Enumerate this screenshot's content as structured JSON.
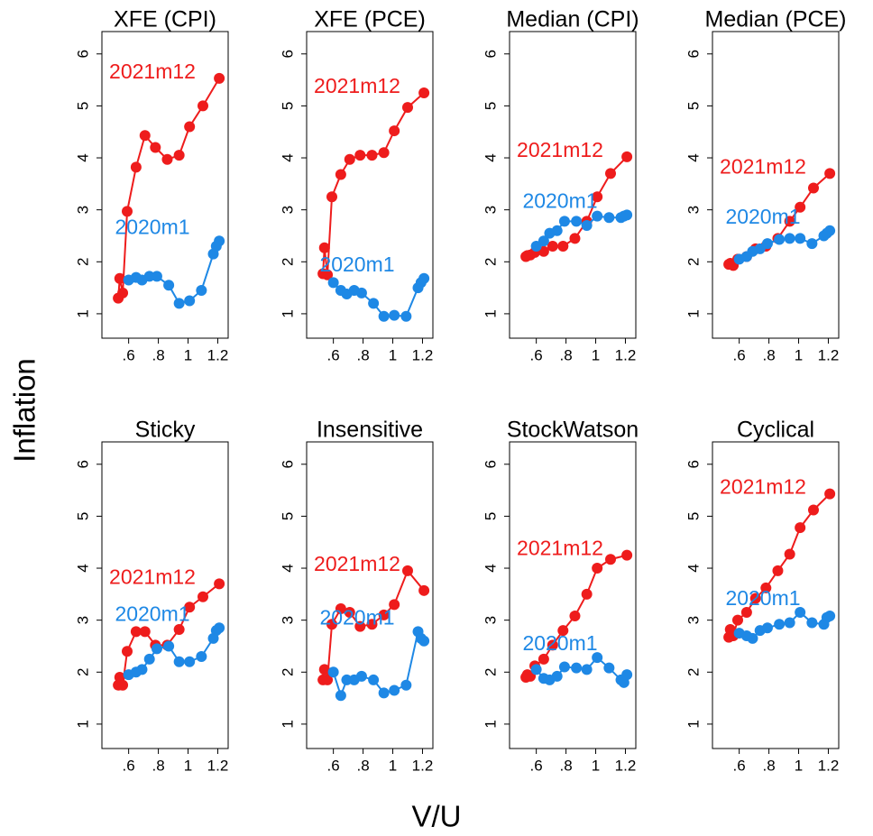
{
  "xlabel": "V/U",
  "ylabel": "Inflation",
  "chart_data": [
    {
      "type": "line",
      "title": "XFE (CPI)",
      "xlim": [
        0.42,
        1.27
      ],
      "ylim": [
        0.53,
        6.43
      ],
      "xticks": [
        {
          "value": 0.6,
          "label": ".6"
        },
        {
          "value": 0.8,
          "label": ".8"
        },
        1,
        1.2
      ],
      "yticks": [
        1,
        2,
        3,
        4,
        5,
        6
      ],
      "series": [
        {
          "name": "2021m12",
          "color": "#ee1c1c",
          "x": [
            0.53,
            0.54,
            0.56,
            0.59,
            0.65,
            0.71,
            0.78,
            0.86,
            0.94,
            1.01,
            1.1,
            1.21
          ],
          "values": [
            1.3,
            1.68,
            1.4,
            2.97,
            3.82,
            4.43,
            4.2,
            3.97,
            4.05,
            4.6,
            5.0,
            5.53
          ]
        },
        {
          "name": "2020m1",
          "color": "#1e88e5",
          "x": [
            0.6,
            0.65,
            0.69,
            0.74,
            0.79,
            0.87,
            0.94,
            1.01,
            1.09,
            1.17,
            1.19,
            1.21
          ],
          "values": [
            1.65,
            1.7,
            1.65,
            1.72,
            1.72,
            1.55,
            1.2,
            1.25,
            1.45,
            2.15,
            2.3,
            2.4
          ]
        }
      ]
    },
    {
      "type": "line",
      "title": "XFE (PCE)",
      "xlim": [
        0.42,
        1.27
      ],
      "ylim": [
        0.53,
        6.43
      ],
      "xticks": [
        {
          "value": 0.6,
          "label": ".6"
        },
        {
          "value": 0.8,
          "label": ".8"
        },
        1,
        1.2
      ],
      "yticks": [
        1,
        2,
        3,
        4,
        5,
        6
      ],
      "series": [
        {
          "name": "2021m12",
          "color": "#ee1c1c",
          "x": [
            0.53,
            0.54,
            0.56,
            0.59,
            0.65,
            0.71,
            0.78,
            0.86,
            0.94,
            1.01,
            1.1,
            1.21
          ],
          "values": [
            1.77,
            2.27,
            1.75,
            3.25,
            3.68,
            3.97,
            4.05,
            4.05,
            4.1,
            4.52,
            4.97,
            5.25
          ]
        },
        {
          "name": "2020m1",
          "color": "#1e88e5",
          "x": [
            0.6,
            0.65,
            0.69,
            0.74,
            0.79,
            0.87,
            0.94,
            1.01,
            1.09,
            1.17,
            1.19,
            1.21
          ],
          "values": [
            1.6,
            1.45,
            1.38,
            1.45,
            1.4,
            1.2,
            0.95,
            0.97,
            0.95,
            1.5,
            1.6,
            1.68
          ]
        }
      ]
    },
    {
      "type": "line",
      "title": "Median (CPI)",
      "xlim": [
        0.42,
        1.27
      ],
      "ylim": [
        0.53,
        6.43
      ],
      "xticks": [
        {
          "value": 0.6,
          "label": ".6"
        },
        {
          "value": 0.8,
          "label": ".8"
        },
        1,
        1.2
      ],
      "yticks": [
        1,
        2,
        3,
        4,
        5,
        6
      ],
      "series": [
        {
          "name": "2021m12",
          "color": "#ee1c1c",
          "x": [
            0.53,
            0.54,
            0.56,
            0.59,
            0.65,
            0.71,
            0.78,
            0.86,
            0.94,
            1.01,
            1.1,
            1.21
          ],
          "values": [
            2.1,
            2.12,
            2.13,
            2.18,
            2.2,
            2.3,
            2.3,
            2.45,
            2.78,
            3.25,
            3.7,
            4.02
          ]
        },
        {
          "name": "2020m1",
          "color": "#1e88e5",
          "x": [
            0.6,
            0.65,
            0.69,
            0.74,
            0.79,
            0.87,
            0.94,
            1.01,
            1.09,
            1.17,
            1.19,
            1.21
          ],
          "values": [
            2.3,
            2.4,
            2.55,
            2.6,
            2.78,
            2.78,
            2.7,
            2.88,
            2.85,
            2.85,
            2.88,
            2.9
          ]
        }
      ]
    },
    {
      "type": "line",
      "title": "Median (PCE)",
      "xlim": [
        0.42,
        1.27
      ],
      "ylim": [
        0.53,
        6.43
      ],
      "xticks": [
        {
          "value": 0.6,
          "label": ".6"
        },
        {
          "value": 0.8,
          "label": ".8"
        },
        1,
        1.2
      ],
      "yticks": [
        1,
        2,
        3,
        4,
        5,
        6
      ],
      "series": [
        {
          "name": "2021m12",
          "color": "#ee1c1c",
          "x": [
            0.53,
            0.54,
            0.56,
            0.59,
            0.65,
            0.71,
            0.78,
            0.86,
            0.94,
            1.01,
            1.1,
            1.21
          ],
          "values": [
            1.95,
            1.97,
            1.93,
            2.05,
            2.1,
            2.25,
            2.3,
            2.45,
            2.78,
            3.05,
            3.42,
            3.7
          ]
        },
        {
          "name": "2020m1",
          "color": "#1e88e5",
          "x": [
            0.6,
            0.65,
            0.69,
            0.74,
            0.79,
            0.87,
            0.94,
            1.01,
            1.09,
            1.17,
            1.19,
            1.21
          ],
          "values": [
            2.05,
            2.1,
            2.2,
            2.25,
            2.35,
            2.43,
            2.45,
            2.45,
            2.35,
            2.5,
            2.55,
            2.6
          ]
        }
      ]
    },
    {
      "type": "line",
      "title": "Sticky",
      "xlim": [
        0.42,
        1.27
      ],
      "ylim": [
        0.53,
        6.43
      ],
      "xticks": [
        {
          "value": 0.6,
          "label": ".6"
        },
        {
          "value": 0.8,
          "label": ".8"
        },
        1,
        1.2
      ],
      "yticks": [
        1,
        2,
        3,
        4,
        5,
        6
      ],
      "series": [
        {
          "name": "2021m12",
          "color": "#ee1c1c",
          "x": [
            0.53,
            0.54,
            0.56,
            0.59,
            0.65,
            0.71,
            0.78,
            0.86,
            0.94,
            1.01,
            1.1,
            1.21
          ],
          "values": [
            1.75,
            1.9,
            1.75,
            2.4,
            2.78,
            2.78,
            2.52,
            2.52,
            2.82,
            3.25,
            3.45,
            3.7
          ]
        },
        {
          "name": "2020m1",
          "color": "#1e88e5",
          "x": [
            0.6,
            0.65,
            0.69,
            0.74,
            0.79,
            0.87,
            0.94,
            1.01,
            1.09,
            1.17,
            1.19,
            1.21
          ],
          "values": [
            1.95,
            2.0,
            2.05,
            2.25,
            2.45,
            2.5,
            2.2,
            2.2,
            2.3,
            2.65,
            2.8,
            2.85
          ]
        }
      ]
    },
    {
      "type": "line",
      "title": "Insensitive",
      "xlim": [
        0.42,
        1.27
      ],
      "ylim": [
        0.53,
        6.43
      ],
      "xticks": [
        {
          "value": 0.6,
          "label": ".6"
        },
        {
          "value": 0.8,
          "label": ".8"
        },
        1,
        1.2
      ],
      "yticks": [
        1,
        2,
        3,
        4,
        5,
        6
      ],
      "series": [
        {
          "name": "2021m12",
          "color": "#ee1c1c",
          "x": [
            0.53,
            0.54,
            0.56,
            0.59,
            0.65,
            0.71,
            0.78,
            0.86,
            0.94,
            1.01,
            1.1,
            1.21
          ],
          "values": [
            1.85,
            2.05,
            1.85,
            2.92,
            3.22,
            3.15,
            2.88,
            2.92,
            3.1,
            3.3,
            3.95,
            3.57
          ]
        },
        {
          "name": "2020m1",
          "color": "#1e88e5",
          "x": [
            0.6,
            0.65,
            0.69,
            0.74,
            0.79,
            0.87,
            0.94,
            1.01,
            1.09,
            1.17,
            1.19,
            1.21
          ],
          "values": [
            2.0,
            1.55,
            1.85,
            1.85,
            1.92,
            1.85,
            1.6,
            1.65,
            1.75,
            2.78,
            2.65,
            2.6
          ]
        }
      ]
    },
    {
      "type": "line",
      "title": "StockWatson",
      "xlim": [
        0.42,
        1.27
      ],
      "ylim": [
        0.53,
        6.43
      ],
      "xticks": [
        {
          "value": 0.6,
          "label": ".6"
        },
        {
          "value": 0.8,
          "label": ".8"
        },
        1,
        1.2
      ],
      "yticks": [
        1,
        2,
        3,
        4,
        5,
        6
      ],
      "series": [
        {
          "name": "2021m12",
          "color": "#ee1c1c",
          "x": [
            0.53,
            0.54,
            0.56,
            0.59,
            0.65,
            0.71,
            0.78,
            0.86,
            0.94,
            1.01,
            1.1,
            1.21
          ],
          "values": [
            1.9,
            1.95,
            1.92,
            2.12,
            2.25,
            2.52,
            2.8,
            3.08,
            3.5,
            4.0,
            4.17,
            4.25
          ]
        },
        {
          "name": "2020m1",
          "color": "#1e88e5",
          "x": [
            0.6,
            0.65,
            0.69,
            0.74,
            0.79,
            0.87,
            0.94,
            1.01,
            1.09,
            1.17,
            1.19,
            1.21
          ],
          "values": [
            2.05,
            1.88,
            1.85,
            1.92,
            2.1,
            2.08,
            2.05,
            2.28,
            2.08,
            1.85,
            1.8,
            1.95
          ]
        }
      ]
    },
    {
      "type": "line",
      "title": "Cyclical",
      "xlim": [
        0.42,
        1.27
      ],
      "ylim": [
        0.53,
        6.43
      ],
      "xticks": [
        {
          "value": 0.6,
          "label": ".6"
        },
        {
          "value": 0.8,
          "label": ".8"
        },
        1,
        1.2
      ],
      "yticks": [
        1,
        2,
        3,
        4,
        5,
        6
      ],
      "series": [
        {
          "name": "2021m12",
          "color": "#ee1c1c",
          "x": [
            0.53,
            0.54,
            0.56,
            0.59,
            0.65,
            0.71,
            0.78,
            0.86,
            0.94,
            1.01,
            1.1,
            1.21
          ],
          "values": [
            2.67,
            2.82,
            2.7,
            3.0,
            3.15,
            3.42,
            3.62,
            3.95,
            4.27,
            4.78,
            5.12,
            5.43
          ]
        },
        {
          "name": "2020m1",
          "color": "#1e88e5",
          "x": [
            0.6,
            0.65,
            0.69,
            0.74,
            0.79,
            0.87,
            0.94,
            1.01,
            1.09,
            1.17,
            1.19,
            1.21
          ],
          "values": [
            2.75,
            2.7,
            2.65,
            2.8,
            2.85,
            2.92,
            2.95,
            3.15,
            2.95,
            2.92,
            3.05,
            3.08
          ]
        }
      ]
    }
  ]
}
